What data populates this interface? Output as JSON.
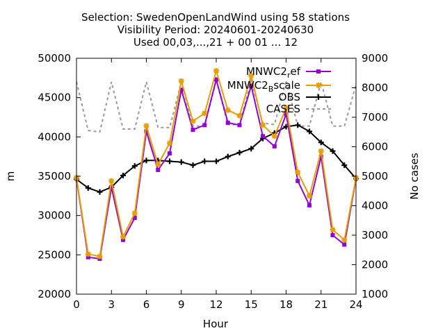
{
  "chart_data": {
    "type": "line",
    "title_lines": [
      "Selection: SwedenOpenLandWind using    58 stations",
      "Visibility   Period: 20240601-20240630",
      "Used 00,03,...,21 + 00 01 ... 12"
    ],
    "xlabel": "Hour",
    "ylabel": "m",
    "y2label": "No cases",
    "xlim": [
      0,
      24
    ],
    "ylim": [
      20000,
      50000
    ],
    "y2lim": [
      1000,
      9000
    ],
    "xticks": [
      0,
      3,
      6,
      9,
      12,
      15,
      18,
      21,
      24
    ],
    "yticks": [
      20000,
      25000,
      30000,
      35000,
      40000,
      45000,
      50000
    ],
    "y2ticks": [
      1000,
      2000,
      3000,
      4000,
      5000,
      6000,
      7000,
      8000,
      9000
    ],
    "legend_position": "top-right",
    "x": [
      0,
      1,
      2,
      3,
      4,
      5,
      6,
      7,
      8,
      9,
      10,
      11,
      12,
      13,
      14,
      15,
      16,
      17,
      18,
      19,
      20,
      21,
      22,
      23,
      24
    ],
    "series": [
      {
        "name": "MNWC2_ref",
        "legend_main": "MNWC2",
        "legend_sub": "r",
        "legend_rest": "ef",
        "color": "#9400d3",
        "marker": "square",
        "axis": "y",
        "values": [
          34700,
          24700,
          24500,
          33600,
          26900,
          29700,
          40700,
          35800,
          37900,
          46000,
          40900,
          41500,
          47300,
          41800,
          41500,
          46500,
          40100,
          38800,
          42900,
          34400,
          31300,
          37500,
          27500,
          26300,
          34700
        ]
      },
      {
        "name": "MNWC2_Bscale",
        "legend_main": "MNWC2",
        "legend_sub": "B",
        "legend_rest": "scale",
        "color": "#e69f00",
        "marker": "star",
        "axis": "y",
        "values": [
          34800,
          25100,
          24800,
          34400,
          27300,
          30300,
          41400,
          36500,
          39200,
          47100,
          42000,
          43000,
          48400,
          43400,
          42700,
          47800,
          41500,
          40100,
          43700,
          35500,
          32500,
          38200,
          28200,
          26900,
          34800
        ]
      },
      {
        "name": "OBS",
        "legend_main": "OBS",
        "color": "#000000",
        "marker": "plus",
        "axis": "y",
        "values": [
          34600,
          33500,
          33000,
          33600,
          35100,
          36300,
          37000,
          37000,
          36900,
          36800,
          36400,
          36900,
          36900,
          37500,
          38000,
          38500,
          39800,
          40500,
          41300,
          41500,
          40700,
          39300,
          38200,
          36400,
          34700
        ]
      },
      {
        "name": "CASES",
        "legend_main": "CASES",
        "color": "#999999",
        "marker": "none",
        "dashed": true,
        "axis": "y2",
        "values": [
          8200,
          6550,
          6500,
          8200,
          6600,
          6600,
          8200,
          6650,
          6650,
          8200,
          6700,
          6700,
          8250,
          6750,
          6750,
          8250,
          6800,
          6750,
          8250,
          6700,
          6700,
          8200,
          6700,
          6700,
          8100
        ]
      }
    ]
  }
}
